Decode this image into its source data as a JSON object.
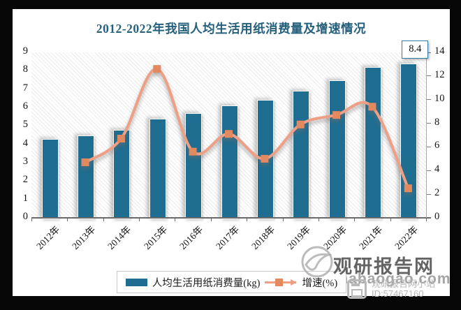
{
  "title": "2012-2022年我国人均生活用纸消费量及增速情况",
  "chart_data": {
    "type": "bar+line",
    "categories": [
      "2012年",
      "2013年",
      "2014年",
      "2015年",
      "2016年",
      "2017年",
      "2018年",
      "2019年",
      "2020年",
      "2021年",
      "2022年"
    ],
    "series": [
      {
        "name": "人均生活用纸消费量(kg)",
        "type": "bar",
        "axis": "left",
        "values": [
          4.3,
          4.5,
          4.8,
          5.4,
          5.7,
          6.1,
          6.4,
          6.9,
          7.5,
          8.2,
          8.4
        ]
      },
      {
        "name": "增速(%)",
        "type": "line",
        "axis": "right",
        "values": [
          null,
          4.7,
          6.7,
          12.6,
          5.6,
          7.1,
          5.0,
          7.9,
          8.7,
          9.4,
          2.5
        ]
      }
    ],
    "left_axis": {
      "min": 0,
      "max": 9,
      "step": 1
    },
    "right_axis": {
      "min": 0,
      "max": 14,
      "step": 2
    },
    "annotation": {
      "text": "8.4",
      "category": "2022年"
    },
    "legend_position": "bottom",
    "grid": false
  },
  "colors": {
    "bar": "#1f6d90",
    "line": "#eda085",
    "marker": "#e3895f",
    "title": "#25607d"
  },
  "legend": {
    "items": [
      {
        "label": "人均生活用纸消费量(kg)",
        "type": "bar"
      },
      {
        "label": "增速(%)",
        "type": "line"
      }
    ]
  },
  "watermark": {
    "brand": "观研报告网",
    "domain": "chinabaogao.com",
    "badge_name": "观研报告网小站",
    "badge_id": "ID:57467160"
  }
}
